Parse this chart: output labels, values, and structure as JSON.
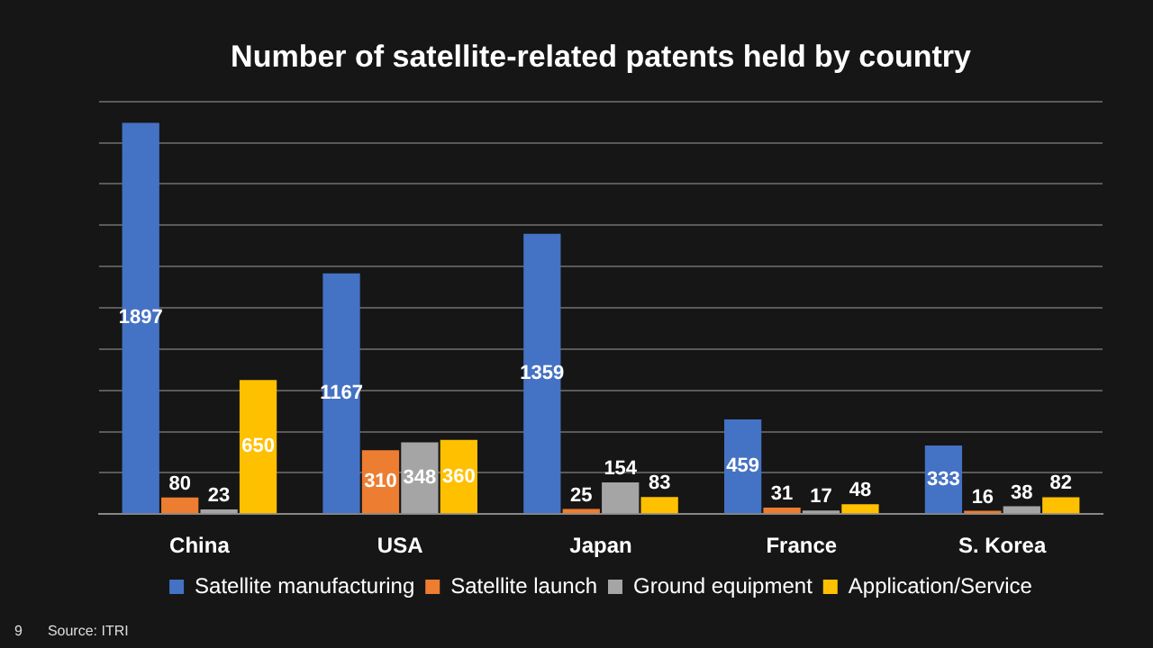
{
  "chart_data": {
    "type": "bar",
    "title": "Number of satellite-related patents held by country",
    "categories": [
      "China",
      "USA",
      "Japan",
      "France",
      "S. Korea"
    ],
    "series": [
      {
        "name": "Satellite manufacturing",
        "color": "#4472c4",
        "values": [
          1897,
          1167,
          1359,
          459,
          333
        ]
      },
      {
        "name": "Satellite launch",
        "color": "#ed7d31",
        "values": [
          80,
          310,
          25,
          31,
          16
        ]
      },
      {
        "name": "Ground equipment",
        "color": "#a5a5a5",
        "values": [
          23,
          348,
          154,
          17,
          38
        ]
      },
      {
        "name": "Application/Service",
        "color": "#ffc000",
        "values": [
          650,
          360,
          83,
          48,
          82
        ]
      }
    ],
    "ylim": [
      0,
      2000
    ],
    "yticks": [
      {
        "value": 0,
        "label": null
      },
      {
        "value": 200,
        "label": null
      },
      {
        "value": 400,
        "label": null
      },
      {
        "value": 600,
        "label": null
      },
      {
        "value": 800,
        "label": null
      },
      {
        "value": 1000,
        "label": null
      },
      {
        "value": 1200,
        "label": null
      },
      {
        "value": 1400,
        "label": null
      },
      {
        "value": 1600,
        "label": null
      },
      {
        "value": 1800,
        "label": null
      },
      {
        "value": 2000,
        "label": null
      }
    ],
    "tick_labels": "x",
    "grid": "y",
    "legend": "bottom",
    "data_labels": true,
    "annotations": [
      "9",
      "Source: ITRI"
    ]
  }
}
